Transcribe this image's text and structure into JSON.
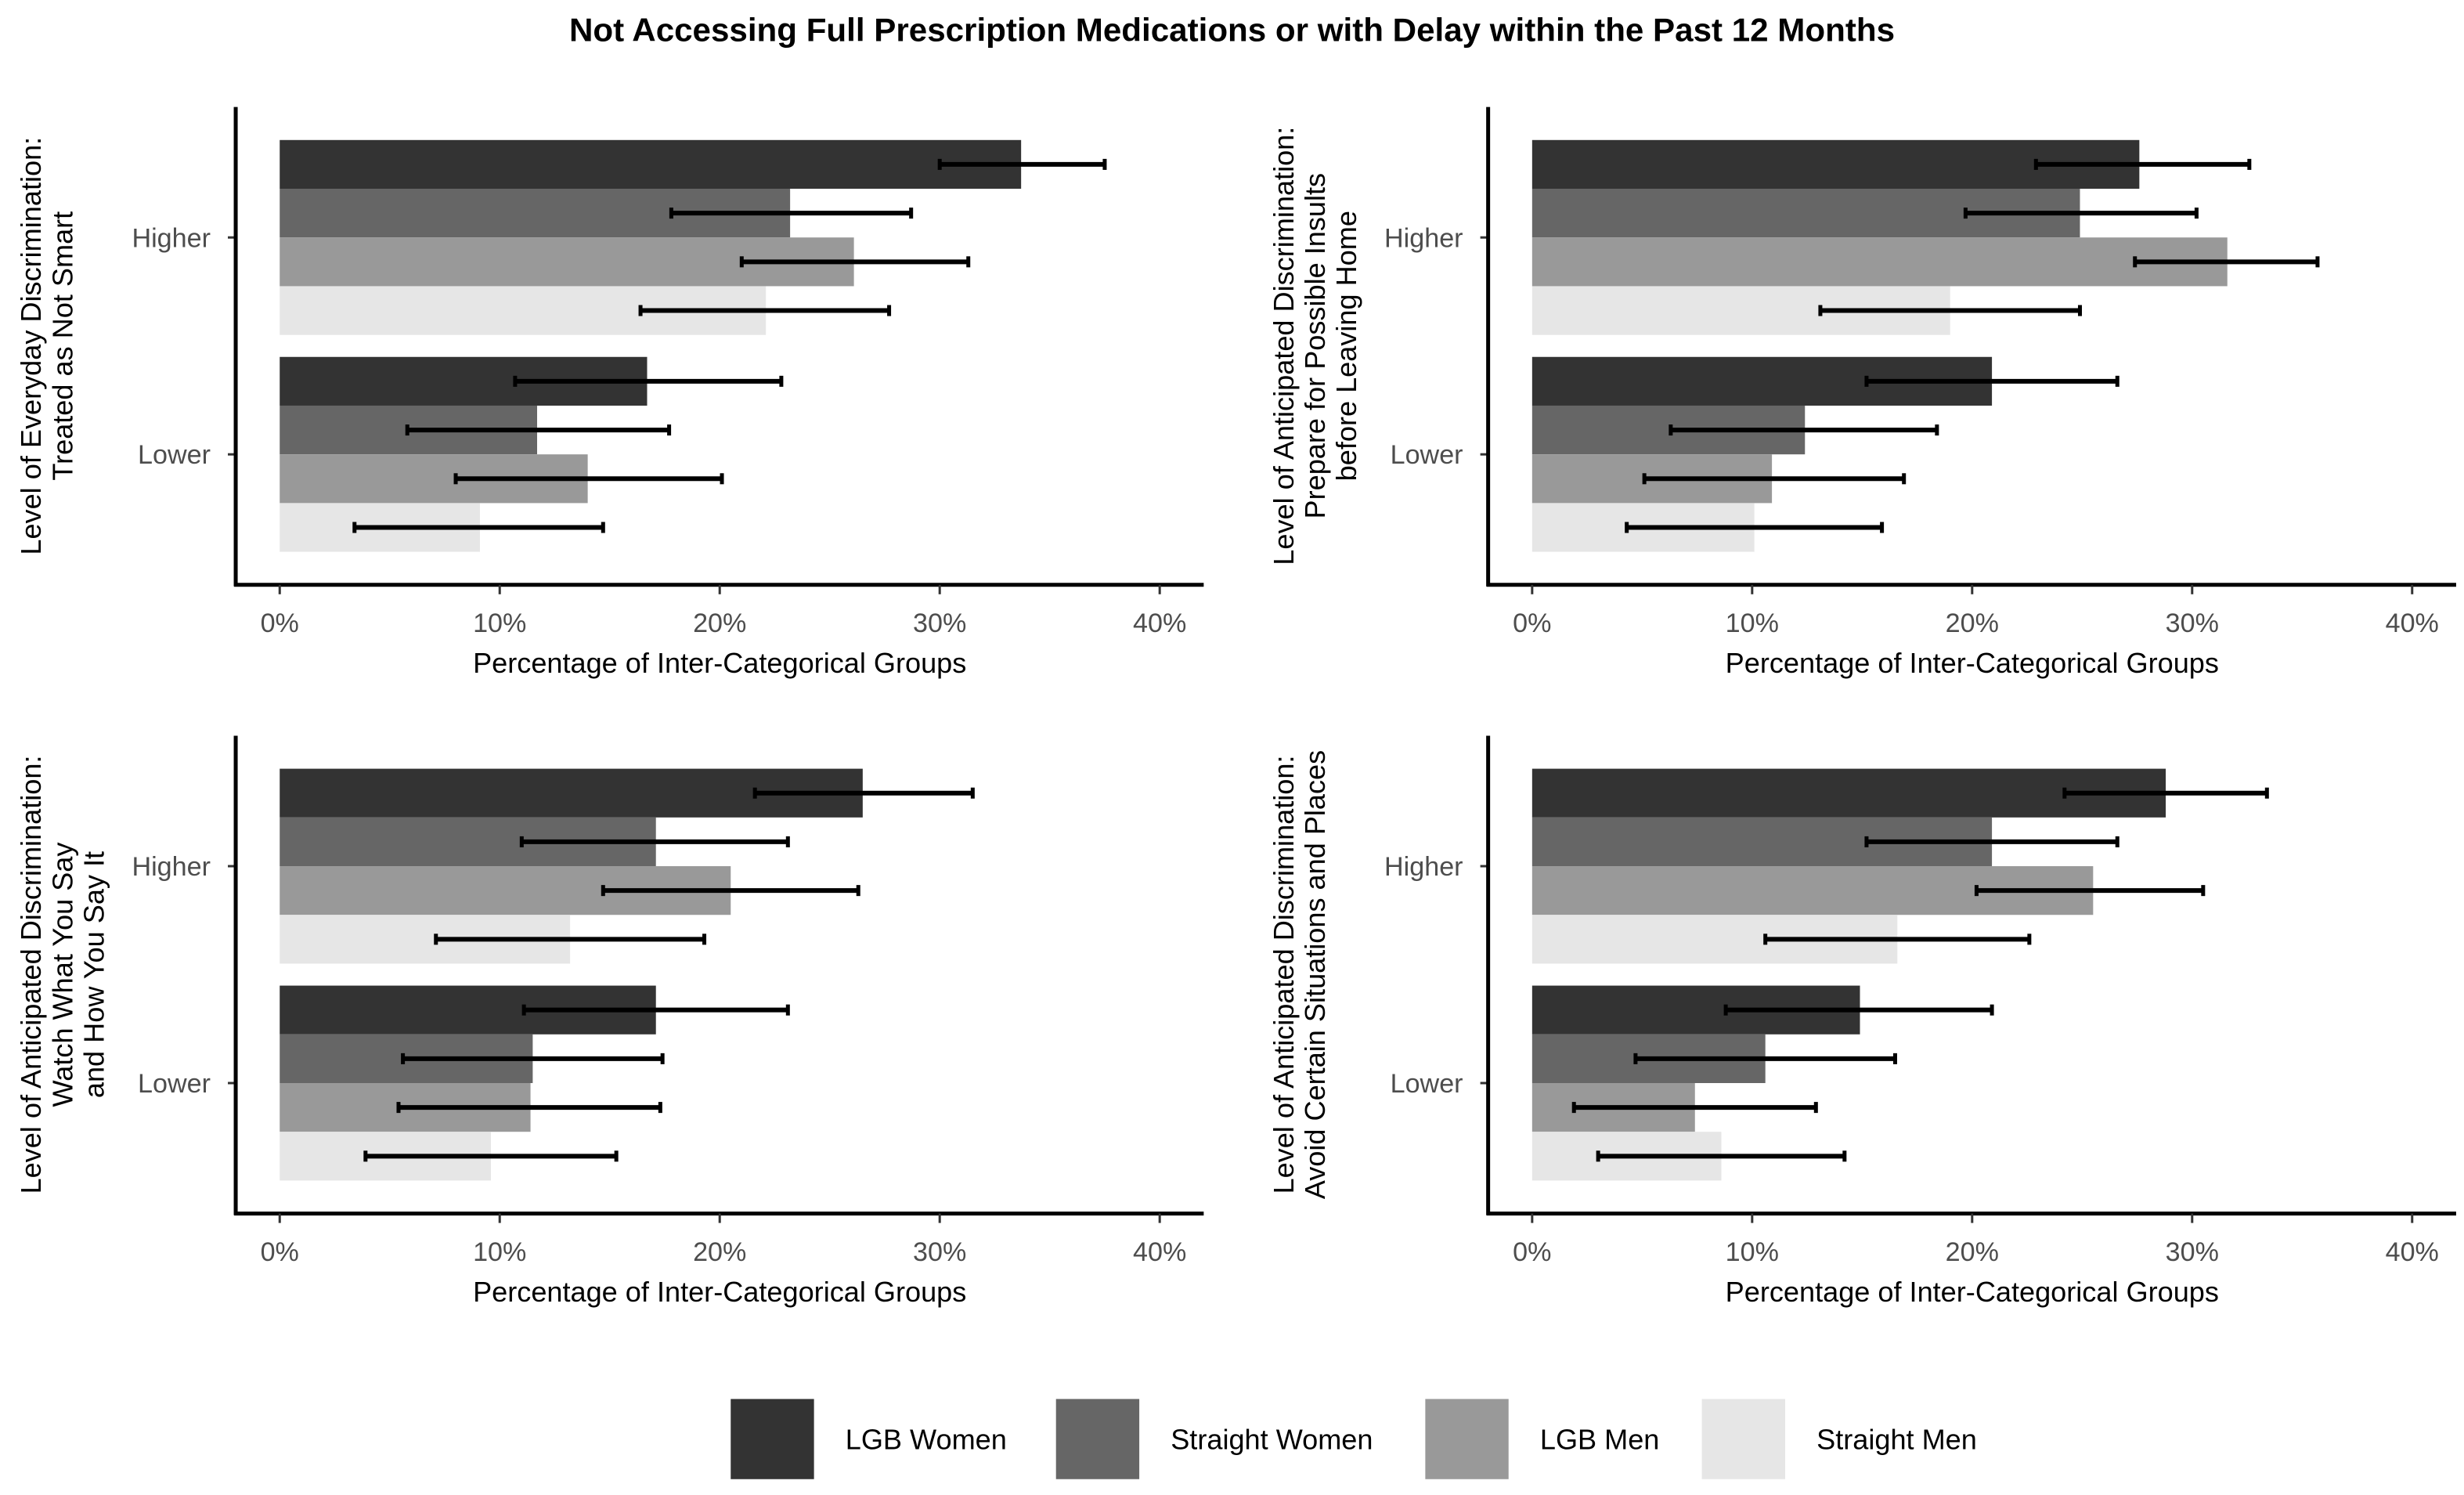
{
  "chart_data": {
    "type": "bar",
    "orientation": "horizontal",
    "title": "Not Accessing Full Prescription Medications or with Delay within the Past 12 Months",
    "legend": {
      "placement": "bottom",
      "entries": [
        {
          "name": "LGB Women",
          "color": "#333333"
        },
        {
          "name": "Straight Women",
          "color": "#666666"
        },
        {
          "name": "LGB Men",
          "color": "#999999"
        },
        {
          "name": "Straight Men",
          "color": "#e6e6e6"
        }
      ]
    },
    "xlim": [
      0,
      40
    ],
    "xticks": [
      0,
      10,
      20,
      30,
      40
    ],
    "xtick_labels": [
      "0%",
      "10%",
      "20%",
      "30%",
      "40%"
    ],
    "grid": false,
    "panels": [
      {
        "ylabel": [
          "Level of Everyday Discrimination:",
          "Treated as Not Smart"
        ],
        "xlabel": "Percentage of Inter-Categorical Groups",
        "categories": [
          "Higher",
          "Lower"
        ],
        "series": [
          {
            "name": "LGB Women",
            "values": [
              33.7,
              16.7
            ],
            "ci_low": [
              30.0,
              10.7
            ],
            "ci_high": [
              37.5,
              22.8
            ]
          },
          {
            "name": "Straight Women",
            "values": [
              23.2,
              11.7
            ],
            "ci_low": [
              17.8,
              5.8
            ],
            "ci_high": [
              28.7,
              17.7
            ]
          },
          {
            "name": "LGB Men",
            "values": [
              26.1,
              14.0
            ],
            "ci_low": [
              21.0,
              8.0
            ],
            "ci_high": [
              31.3,
              20.1
            ]
          },
          {
            "name": "Straight Men",
            "values": [
              22.1,
              9.1
            ],
            "ci_low": [
              16.4,
              3.4
            ],
            "ci_high": [
              27.7,
              14.7
            ]
          }
        ]
      },
      {
        "ylabel": [
          "Level of Anticipated Discrimination:",
          "Prepare for Possible Insults",
          "before Leaving Home"
        ],
        "xlabel": "Percentage of Inter-Categorical Groups",
        "categories": [
          "Higher",
          "Lower"
        ],
        "series": [
          {
            "name": "LGB Women",
            "values": [
              27.6,
              20.9
            ],
            "ci_low": [
              22.9,
              15.2
            ],
            "ci_high": [
              32.6,
              26.6
            ]
          },
          {
            "name": "Straight Women",
            "values": [
              24.9,
              12.4
            ],
            "ci_low": [
              19.7,
              6.3
            ],
            "ci_high": [
              30.2,
              18.4
            ]
          },
          {
            "name": "LGB Men",
            "values": [
              31.6,
              10.9
            ],
            "ci_low": [
              27.4,
              5.1
            ],
            "ci_high": [
              35.7,
              16.9
            ]
          },
          {
            "name": "Straight Men",
            "values": [
              19.0,
              10.1
            ],
            "ci_low": [
              13.1,
              4.3
            ],
            "ci_high": [
              24.9,
              15.9
            ]
          }
        ]
      },
      {
        "ylabel": [
          "Level of Anticipated Discrimination:",
          "Watch What You Say",
          "and How You Say It"
        ],
        "xlabel": "Percentage of Inter-Categorical Groups",
        "categories": [
          "Higher",
          "Lower"
        ],
        "series": [
          {
            "name": "LGB Women",
            "values": [
              26.5,
              17.1
            ],
            "ci_low": [
              21.6,
              11.1
            ],
            "ci_high": [
              31.5,
              23.1
            ]
          },
          {
            "name": "Straight Women",
            "values": [
              17.1,
              11.5
            ],
            "ci_low": [
              11.0,
              5.6
            ],
            "ci_high": [
              23.1,
              17.4
            ]
          },
          {
            "name": "LGB Men",
            "values": [
              20.5,
              11.4
            ],
            "ci_low": [
              14.7,
              5.4
            ],
            "ci_high": [
              26.3,
              17.3
            ]
          },
          {
            "name": "Straight Men",
            "values": [
              13.2,
              9.6
            ],
            "ci_low": [
              7.1,
              3.9
            ],
            "ci_high": [
              19.3,
              15.3
            ]
          }
        ]
      },
      {
        "ylabel": [
          "Level of Anticipated Discrimination:",
          "Avoid Certain Situations and Places"
        ],
        "xlabel": "Percentage of Inter-Categorical Groups",
        "categories": [
          "Higher",
          "Lower"
        ],
        "series": [
          {
            "name": "LGB Women",
            "values": [
              28.8,
              14.9
            ],
            "ci_low": [
              24.2,
              8.8
            ],
            "ci_high": [
              33.4,
              20.9
            ]
          },
          {
            "name": "Straight Women",
            "values": [
              20.9,
              10.6
            ],
            "ci_low": [
              15.2,
              4.7
            ],
            "ci_high": [
              26.6,
              16.5
            ]
          },
          {
            "name": "LGB Men",
            "values": [
              25.5,
              7.4
            ],
            "ci_low": [
              20.2,
              1.9
            ],
            "ci_high": [
              30.5,
              12.9
            ]
          },
          {
            "name": "Straight Men",
            "values": [
              16.6,
              8.6
            ],
            "ci_low": [
              10.6,
              3.0
            ],
            "ci_high": [
              22.6,
              14.2
            ]
          }
        ]
      }
    ]
  }
}
